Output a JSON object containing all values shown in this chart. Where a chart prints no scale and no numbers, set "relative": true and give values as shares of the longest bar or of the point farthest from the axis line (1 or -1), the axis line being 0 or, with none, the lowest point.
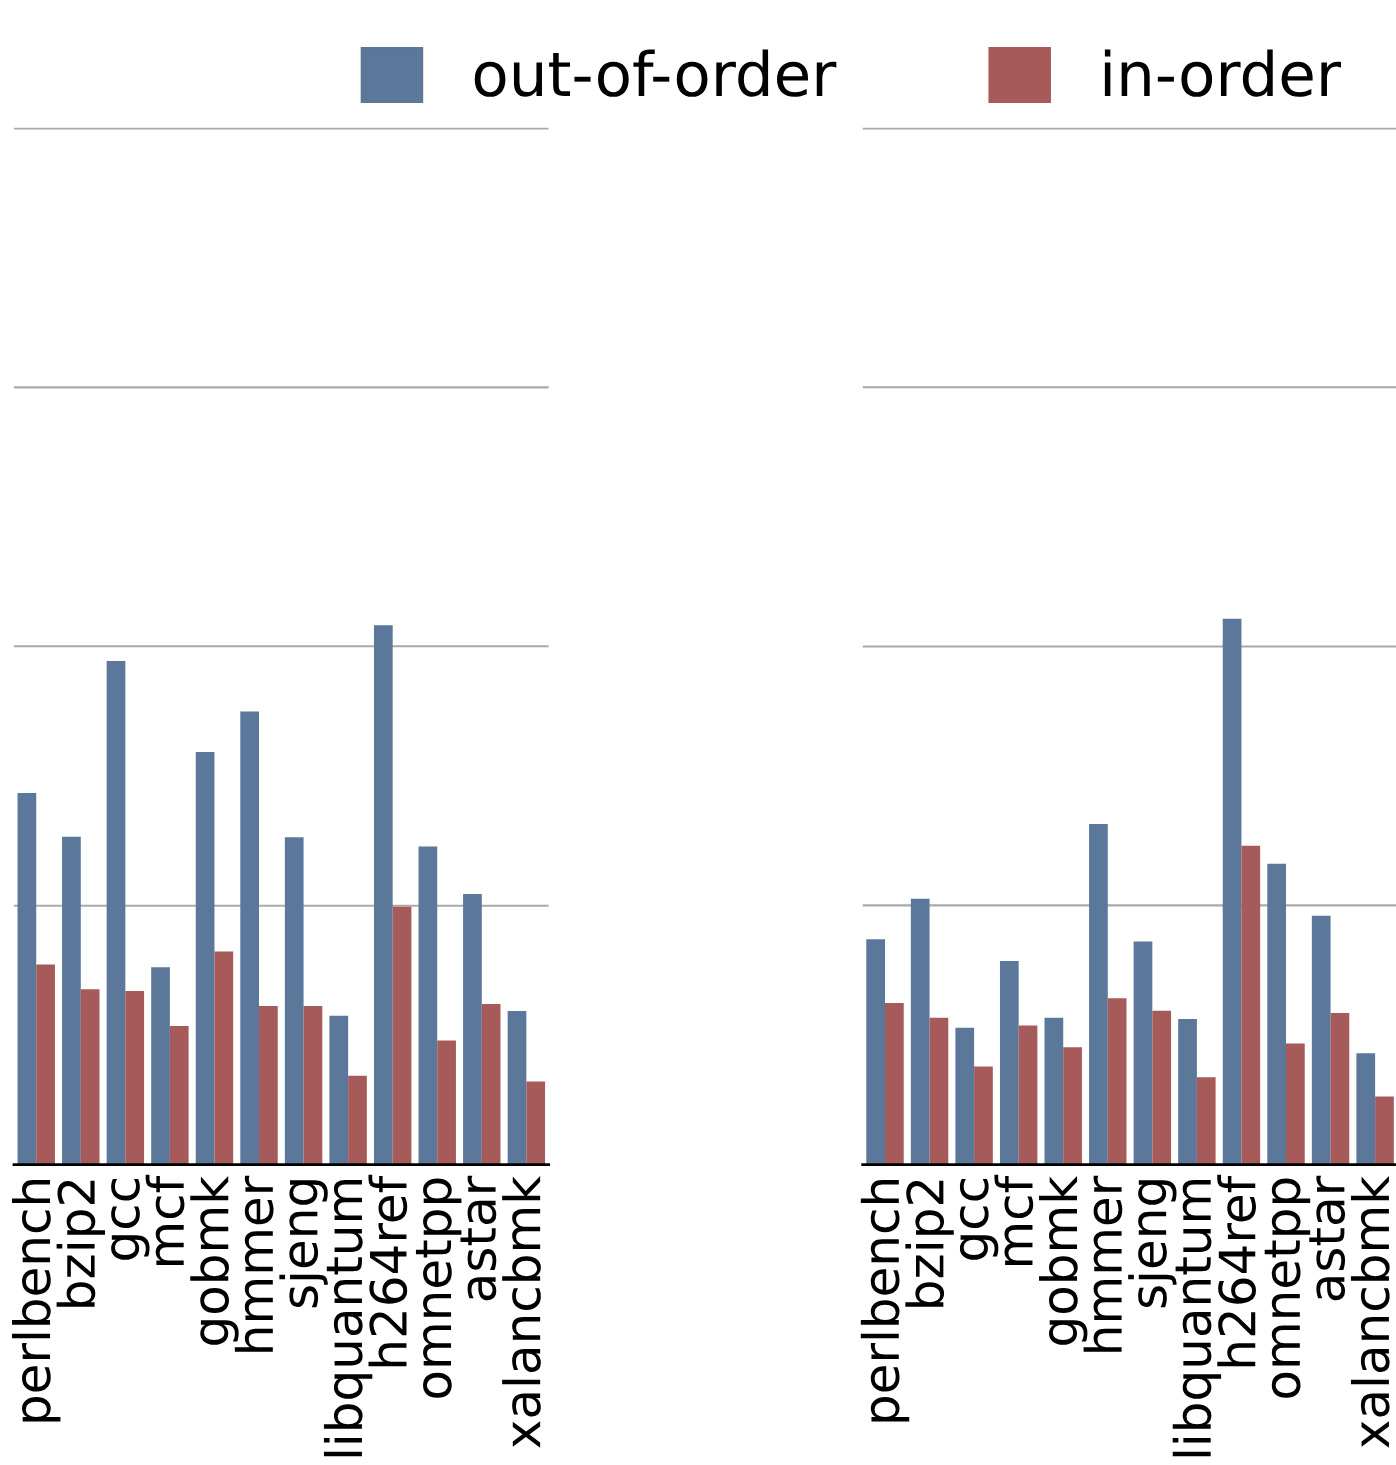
{
  "chart_data": [
    {
      "type": "bar",
      "relative": true,
      "legend": "top right",
      "categories": [
        "perlbench",
        "bzip2",
        "gcc",
        "mcf",
        "gobmk",
        "hmmer",
        "sjeng",
        "libquantum",
        "h264ref",
        "omnetpp",
        "astar",
        "xalancbmk"
      ],
      "series": [
        {
          "name": "out-of-order",
          "color": "#5b7799",
          "values": [
            0.689,
            0.608,
            0.934,
            0.366,
            0.765,
            0.84,
            0.607,
            0.276,
            1,
            0.59,
            0.502,
            0.285
          ]
        },
        {
          "name": "in-order",
          "color": "#a65a5a",
          "values": [
            0.371,
            0.325,
            0.322,
            0.257,
            0.395,
            0.294,
            0.294,
            0.165,
            0.478,
            0.23,
            0.298,
            0.154
          ]
        }
      ],
      "ref_lines": [
        {
          "axis": "y",
          "value": 0.48,
          "color": "#aaaaaa"
        },
        {
          "axis": "y",
          "value": 0.961,
          "color": "#aaaaaa"
        },
        {
          "axis": "y",
          "value": 1.441,
          "color": "#aaaaaa"
        },
        {
          "axis": "y",
          "value": 1.921,
          "color": "#aaaaaa"
        }
      ]
    },
    {
      "type": "bar",
      "relative": true,
      "categories": [
        "perlbench",
        "bzip2",
        "gcc",
        "mcf",
        "gobmk",
        "hmmer",
        "sjeng",
        "libquantum",
        "h264ref",
        "omnetpp",
        "astar",
        "xalancbmk"
      ],
      "series": [
        {
          "color": "#5b7799",
          "values": [
            0.413,
            0.487,
            0.251,
            0.373,
            0.269,
            0.624,
            0.409,
            0.267,
            1,
            0.551,
            0.456,
            0.204
          ]
        },
        {
          "color": "#a65a5a",
          "values": [
            0.296,
            0.269,
            0.18,
            0.255,
            0.215,
            0.305,
            0.282,
            0.16,
            0.584,
            0.222,
            0.278,
            0.125
          ]
        }
      ],
      "ref_lines": [
        {
          "axis": "y",
          "value": 0.475,
          "color": "#aaaaaa"
        },
        {
          "axis": "y",
          "value": 0.949,
          "color": "#aaaaaa"
        },
        {
          "axis": "y",
          "value": 1.424,
          "color": "#aaaaaa"
        },
        {
          "axis": "y",
          "value": 1.898,
          "color": "#aaaaaa"
        }
      ]
    }
  ]
}
